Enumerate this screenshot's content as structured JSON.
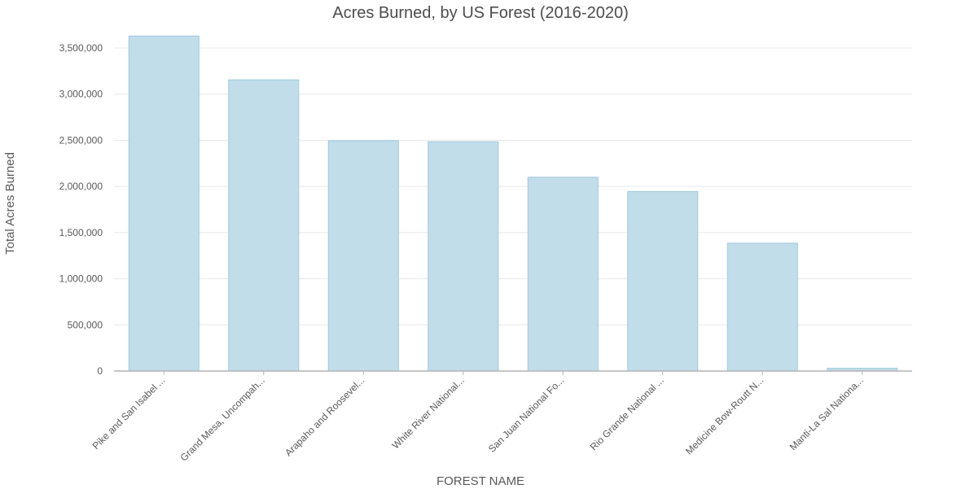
{
  "chart_data": {
    "type": "bar",
    "title": "Acres Burned, by US Forest (2016-2020)",
    "xlabel": "FOREST NAME",
    "ylabel": "Total Acres Burned",
    "categories": [
      "Pike and San Isabel ...",
      "Grand Mesa, Uncompah...",
      "Arapaho and Roosevel...",
      "White River National...",
      "San Juan National Fo...",
      "Rio Grande National ...",
      "Medicine Bow-Routt N...",
      "Manti-La Sal Nationa..."
    ],
    "values": [
      3630000,
      3155000,
      2495000,
      2485000,
      2100000,
      1945000,
      1385000,
      30000
    ],
    "ylim": [
      0,
      3500000
    ],
    "yticks": [
      0,
      500000,
      1000000,
      1500000,
      2000000,
      2500000,
      3000000,
      3500000
    ],
    "ytick_labels": [
      "0",
      "500,000",
      "1,000,000",
      "1,500,000",
      "2,000,000",
      "2,500,000",
      "3,000,000",
      "3,500,000"
    ],
    "grid": true,
    "legend": "none",
    "colors": {
      "bar_fill": "#c1ddea",
      "bar_stroke": "#9fc8de"
    }
  }
}
